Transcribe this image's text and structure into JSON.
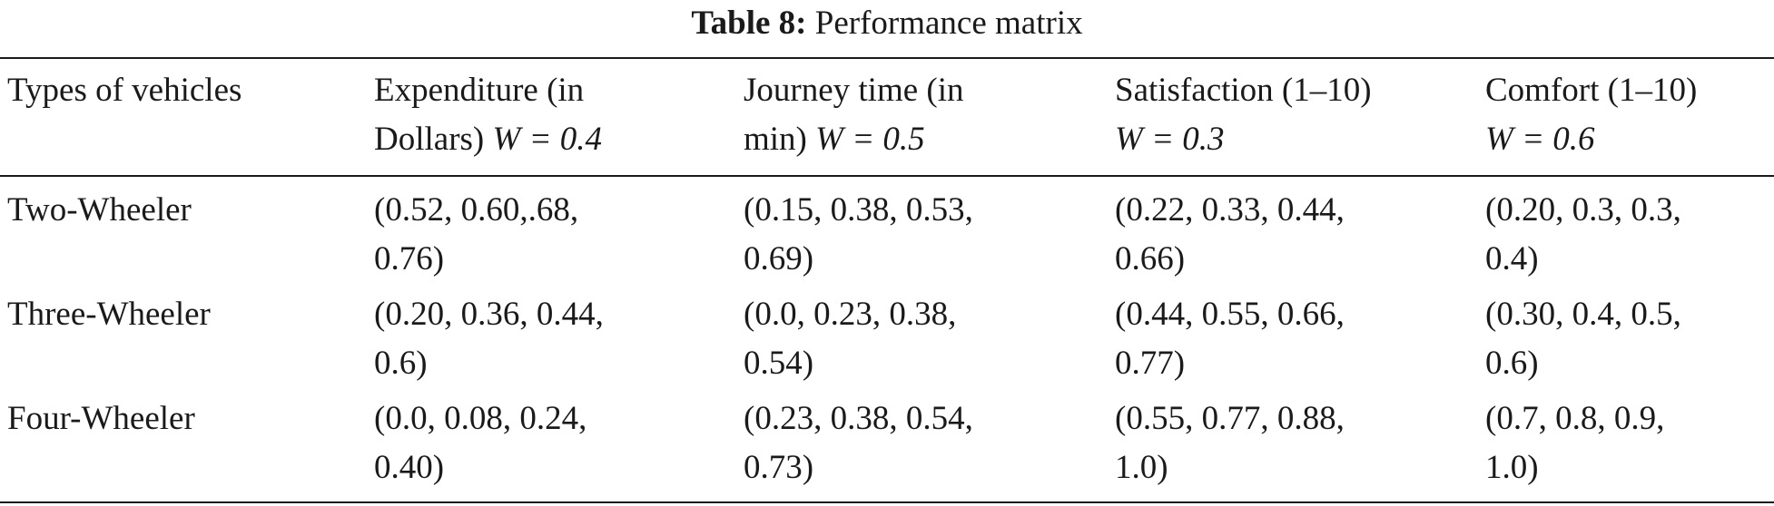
{
  "caption": {
    "label": "Table 8:",
    "title": "Performance matrix"
  },
  "headers": [
    {
      "lines": [
        "Types of vehicles"
      ]
    },
    {
      "lines": [
        "Expenditure (in",
        "Dollars)"
      ],
      "weight": "W = 0.4"
    },
    {
      "lines": [
        "Journey time (in",
        "min)"
      ],
      "weight": "W = 0.5"
    },
    {
      "lines": [
        "Satisfaction (1–10)",
        ""
      ],
      "weight": "W = 0.3"
    },
    {
      "lines": [
        "Comfort (1–10)",
        ""
      ],
      "weight": "W = 0.6"
    }
  ],
  "rows": [
    {
      "name": "Two-Wheeler",
      "cells": [
        [
          "(0.52, 0.60,.68,",
          "0.76)"
        ],
        [
          "(0.15, 0.38, 0.53,",
          "0.69)"
        ],
        [
          "(0.22, 0.33, 0.44,",
          "0.66)"
        ],
        [
          "(0.20, 0.3, 0.3,",
          "0.4)"
        ]
      ]
    },
    {
      "name": "Three-Wheeler",
      "cells": [
        [
          "(0.20, 0.36, 0.44,",
          "0.6)"
        ],
        [
          "(0.0, 0.23, 0.38,",
          "0.54)"
        ],
        [
          "(0.44, 0.55, 0.66,",
          "0.77)"
        ],
        [
          "(0.30, 0.4, 0.5,",
          "0.6)"
        ]
      ]
    },
    {
      "name": "Four-Wheeler",
      "cells": [
        [
          "(0.0, 0.08, 0.24,",
          "0.40)"
        ],
        [
          "(0.23, 0.38, 0.54,",
          "0.73)"
        ],
        [
          "(0.55, 0.77, 0.88,",
          "1.0)"
        ],
        [
          "(0.7, 0.8, 0.9,",
          "1.0)"
        ]
      ]
    }
  ]
}
